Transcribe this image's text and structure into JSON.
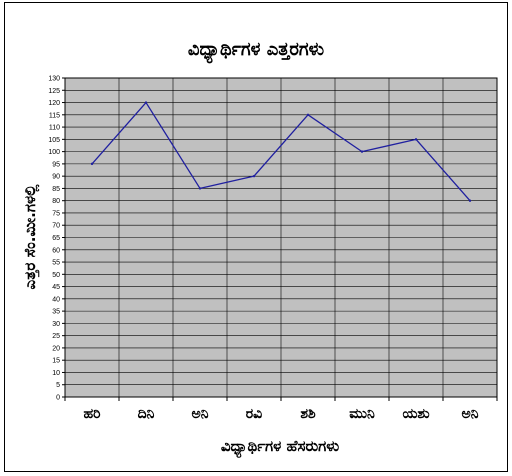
{
  "chart_data": {
    "type": "line",
    "title": "ವಿಧ್ಯಾರ್ಥಿಗಳ ಎತ್ತರಗಳು",
    "xlabel": "ವಿಧ್ಯಾರ್ಥಿಗಳ ಹೆಸರುಗಳು",
    "ylabel": "ಎತ್ತರ ಸೆಂ.ಮೀ.ಗಳಲ್ಲಿ",
    "categories": [
      "ಹರಿ",
      "ದಿನಿ",
      "ಅನಿ",
      "ರವಿ",
      "ಶಶಿ",
      "ಮುನಿ",
      "ಯಶು",
      "ಅನಿ"
    ],
    "series": [
      {
        "values": [
          95,
          120,
          85,
          90,
          115,
          100,
          105,
          80
        ]
      }
    ],
    "ylim": [
      0,
      130
    ],
    "ytick_step": 5,
    "grid": true,
    "line_color": "#2020a0",
    "plot_background": "#c0c0c0"
  }
}
